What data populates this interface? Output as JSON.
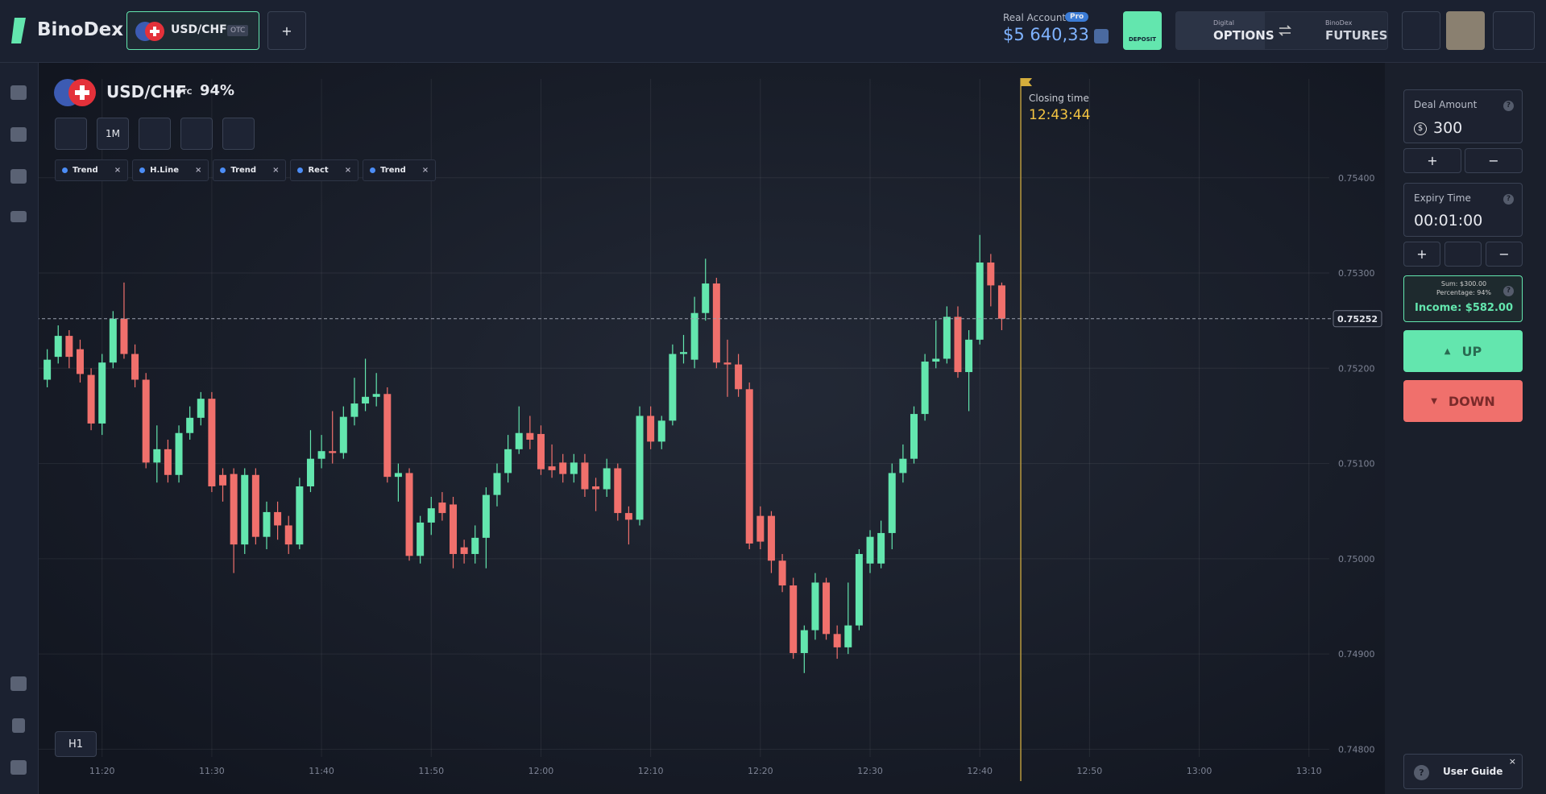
{
  "header": {
    "logo": "BinoDex",
    "pair": "USD/CHF",
    "pair_badge": "OTC",
    "plus": "+",
    "account_label": "Real Account",
    "account_badge": "Pro",
    "balance": "$5 640,33",
    "deposit": "DEPOSIT",
    "digital_small": "Digital",
    "options": "OPTIONS",
    "futures_small": "BinoDex",
    "futures": "FUTURES"
  },
  "instrument": {
    "pair": "USD/CHF",
    "badge": "OTC",
    "payout": "94%",
    "timeframe": "1M",
    "drawings": [
      "Trend",
      "H.Line",
      "Trend",
      "Rect",
      "Trend"
    ],
    "close_glyph": "×",
    "interval": "H1"
  },
  "chart_data": {
    "type": "candlestick",
    "x": [
      "11:15",
      "11:16",
      "11:17",
      "11:18",
      "11:19",
      "11:20",
      "11:21",
      "11:22",
      "11:23",
      "11:24",
      "11:25",
      "11:26",
      "11:27",
      "11:28",
      "11:29",
      "11:30",
      "11:31",
      "11:32",
      "11:33",
      "11:34",
      "11:35",
      "11:36",
      "11:37",
      "11:38",
      "11:39",
      "11:40",
      "11:41",
      "11:42",
      "11:43",
      "11:44",
      "11:45",
      "11:46",
      "11:47",
      "11:48",
      "11:49",
      "11:50",
      "11:51",
      "11:52",
      "11:53",
      "11:54",
      "11:55",
      "11:56",
      "11:57",
      "11:58",
      "11:59",
      "12:00",
      "12:01",
      "12:02",
      "12:03",
      "12:04",
      "12:05",
      "12:06",
      "12:07",
      "12:08",
      "12:09",
      "12:10",
      "12:11",
      "12:12",
      "12:13",
      "12:14",
      "12:15",
      "12:16",
      "12:17",
      "12:18",
      "12:19",
      "12:20",
      "12:21",
      "12:22",
      "12:23",
      "12:24",
      "12:25",
      "12:26",
      "12:27",
      "12:28",
      "12:29",
      "12:30",
      "12:31",
      "12:32",
      "12:33",
      "12:34",
      "12:35",
      "12:36",
      "12:37",
      "12:38",
      "12:39",
      "12:40",
      "12:41",
      "12:42"
    ],
    "open": [
      0.75188,
      0.75212,
      0.75234,
      0.7522,
      0.75193,
      0.75142,
      0.75206,
      0.75252,
      0.75215,
      0.75188,
      0.75101,
      0.75115,
      0.75088,
      0.75132,
      0.75148,
      0.75168,
      0.75088,
      0.75089,
      0.75015,
      0.75088,
      0.75023,
      0.75049,
      0.75035,
      0.75015,
      0.75076,
      0.75105,
      0.75113,
      0.75111,
      0.75149,
      0.75163,
      0.7517,
      0.75173,
      0.75086,
      0.7509,
      0.75003,
      0.75038,
      0.75059,
      0.75057,
      0.75012,
      0.75005,
      0.75022,
      0.75067,
      0.7509,
      0.75115,
      0.75132,
      0.75131,
      0.75097,
      0.75101,
      0.75089,
      0.75101,
      0.75076,
      0.75073,
      0.75095,
      0.75048,
      0.75041,
      0.7515,
      0.75123,
      0.75145,
      0.75215,
      0.75209,
      0.75258,
      0.75289,
      0.75206,
      0.75204,
      0.75178,
      0.75045,
      0.75045,
      0.74998,
      0.74972,
      0.74901,
      0.74925,
      0.74975,
      0.74921,
      0.74907,
      0.7493,
      0.74995,
      0.74995,
      0.75027,
      0.7509,
      0.75105,
      0.75152,
      0.75207,
      0.7521,
      0.75254,
      0.75196,
      0.7523,
      0.75311,
      0.75287
    ],
    "high": [
      0.7522,
      0.75245,
      0.7524,
      0.7523,
      0.752,
      0.75215,
      0.7526,
      0.7529,
      0.75225,
      0.75195,
      0.7514,
      0.75125,
      0.7514,
      0.7516,
      0.75175,
      0.75175,
      0.75095,
      0.75095,
      0.75095,
      0.75095,
      0.7506,
      0.7506,
      0.75045,
      0.75085,
      0.75135,
      0.7513,
      0.75155,
      0.7516,
      0.7519,
      0.7521,
      0.75195,
      0.7518,
      0.751,
      0.75095,
      0.75045,
      0.75065,
      0.7507,
      0.75065,
      0.7502,
      0.75035,
      0.75075,
      0.751,
      0.7513,
      0.7516,
      0.7515,
      0.7514,
      0.7512,
      0.7511,
      0.7511,
      0.7511,
      0.75085,
      0.75105,
      0.751,
      0.75055,
      0.7516,
      0.7516,
      0.7515,
      0.75225,
      0.75235,
      0.75275,
      0.75315,
      0.75295,
      0.7523,
      0.75215,
      0.75185,
      0.75055,
      0.7505,
      0.75005,
      0.7498,
      0.7493,
      0.74985,
      0.7498,
      0.7493,
      0.74975,
      0.7501,
      0.7503,
      0.7504,
      0.751,
      0.7512,
      0.7516,
      0.75215,
      0.7525,
      0.75265,
      0.75265,
      0.7524,
      0.7534,
      0.7532,
      0.7529
    ],
    "low": [
      0.7518,
      0.75205,
      0.752,
      0.75185,
      0.75135,
      0.7513,
      0.752,
      0.7521,
      0.7518,
      0.75095,
      0.7508,
      0.7508,
      0.7508,
      0.75125,
      0.7514,
      0.7507,
      0.7506,
      0.74985,
      0.75005,
      0.75015,
      0.7501,
      0.7502,
      0.75005,
      0.7501,
      0.7507,
      0.75095,
      0.751,
      0.75105,
      0.7514,
      0.75155,
      0.7516,
      0.7508,
      0.7506,
      0.74998,
      0.74995,
      0.75025,
      0.7504,
      0.7499,
      0.74995,
      0.74995,
      0.7499,
      0.75055,
      0.7508,
      0.7511,
      0.75115,
      0.75088,
      0.75085,
      0.7508,
      0.7508,
      0.75065,
      0.7505,
      0.75065,
      0.7504,
      0.75015,
      0.75035,
      0.75115,
      0.75115,
      0.7514,
      0.75205,
      0.752,
      0.7525,
      0.752,
      0.7517,
      0.7517,
      0.7501,
      0.7501,
      0.74985,
      0.74965,
      0.74895,
      0.7488,
      0.74915,
      0.74915,
      0.74895,
      0.749,
      0.74925,
      0.74985,
      0.7499,
      0.7501,
      0.7508,
      0.751,
      0.75145,
      0.752,
      0.75205,
      0.7519,
      0.75155,
      0.75225,
      0.75265,
      0.7524
    ],
    "close": [
      0.75209,
      0.75234,
      0.75212,
      0.75194,
      0.75142,
      0.75206,
      0.75252,
      0.75215,
      0.75188,
      0.75101,
      0.75115,
      0.75088,
      0.75132,
      0.75148,
      0.75168,
      0.75076,
      0.75077,
      0.75015,
      0.75088,
      0.75023,
      0.75049,
      0.75035,
      0.75015,
      0.75076,
      0.75105,
      0.75113,
      0.75111,
      0.75149,
      0.75163,
      0.7517,
      0.75173,
      0.75086,
      0.7509,
      0.75003,
      0.75038,
      0.75053,
      0.75048,
      0.75005,
      0.75005,
      0.75022,
      0.75067,
      0.7509,
      0.75115,
      0.75132,
      0.75125,
      0.75094,
      0.75093,
      0.75089,
      0.75101,
      0.75073,
      0.75073,
      0.75095,
      0.75048,
      0.75041,
      0.7515,
      0.75123,
      0.75145,
      0.75215,
      0.75217,
      0.75258,
      0.75289,
      0.75206,
      0.75204,
      0.75178,
      0.75016,
      0.75018,
      0.74998,
      0.74972,
      0.74901,
      0.74925,
      0.74975,
      0.74921,
      0.74907,
      0.7493,
      0.75005,
      0.75023,
      0.75027,
      0.7509,
      0.75105,
      0.75152,
      0.75207,
      0.7521,
      0.75254,
      0.75196,
      0.7523,
      0.75311,
      0.75287,
      0.75252
    ],
    "up_color": "#63e6ae",
    "down_color": "#f0706c",
    "xlim": [
      "11:14",
      "13:12"
    ],
    "ylim": [
      0.74775,
      0.75519
    ],
    "xticks": [
      "11:20",
      "11:30",
      "11:40",
      "11:50",
      "12:00",
      "12:10",
      "12:20",
      "12:30",
      "12:40",
      "12:50",
      "13:00",
      "13:10"
    ],
    "yticks": [
      {
        "value": 0.748,
        "label": "0.74800"
      },
      {
        "value": 0.749,
        "label": "0.74900"
      },
      {
        "value": 0.75,
        "label": "0.75000"
      },
      {
        "value": 0.751,
        "label": "0.75100"
      },
      {
        "value": 0.752,
        "label": "0.75200"
      },
      {
        "value": 0.753,
        "label": "0.75300"
      },
      {
        "value": 0.754,
        "label": "0.75400"
      }
    ],
    "grid": true,
    "current_price": 0.75252,
    "closing_label": "Closing time",
    "closing_time": "12:43:44"
  },
  "trade_panel": {
    "help": "?",
    "deal_label": "Deal Amount",
    "currency": "$",
    "deal_amount": "300",
    "plus": "+",
    "minus": "−",
    "expiry_label": "Expiry Time",
    "expiry": "00:01:00",
    "sum": "Sum: $300.00",
    "percentage": "Percentage: 94%",
    "income": "Income: $582.00",
    "up": "UP",
    "down": "DOWN",
    "guide": "User Guide",
    "close_glyph": "×"
  }
}
